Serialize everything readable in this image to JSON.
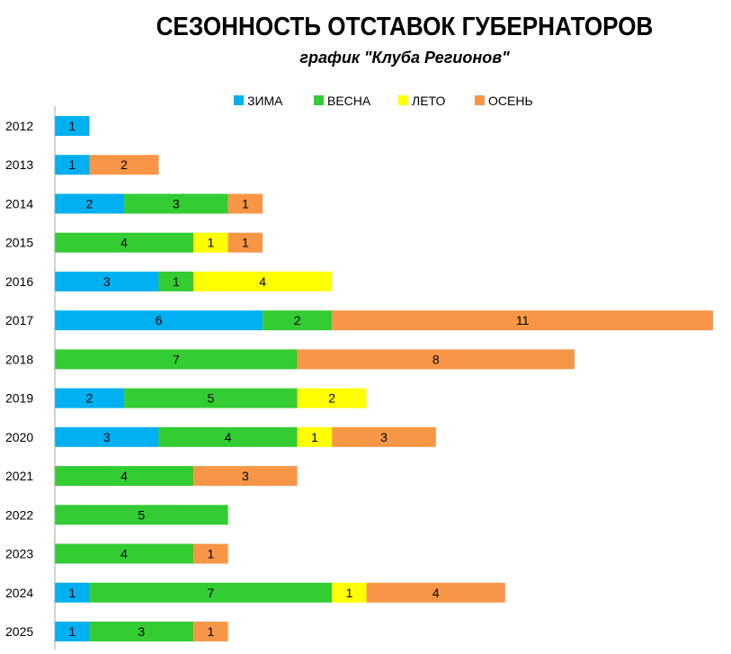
{
  "chart_data": {
    "type": "bar",
    "orientation": "horizontal",
    "stacked": true,
    "title": "СЕЗОННОСТЬ ОТСТАВОК ГУБЕРНАТОРОВ",
    "subtitle": "график \"Клуба Регионов\"",
    "xlabel": "",
    "ylabel": "",
    "legend_position": "top",
    "grid": false,
    "categories": [
      "2012",
      "2013",
      "2014",
      "2015",
      "2016",
      "2017",
      "2018",
      "2019",
      "2020",
      "2021",
      "2022",
      "2023",
      "2024",
      "2025"
    ],
    "series": [
      {
        "name": "ЗИМА",
        "color": "#00b0f0",
        "values": [
          1,
          1,
          2,
          0,
          3,
          6,
          0,
          2,
          3,
          0,
          0,
          0,
          1,
          1
        ]
      },
      {
        "name": "ВЕСНА",
        "color": "#33cc33",
        "values": [
          0,
          0,
          3,
          4,
          1,
          2,
          7,
          5,
          4,
          4,
          5,
          4,
          7,
          3
        ]
      },
      {
        "name": "ЛЕТО",
        "color": "#ffff00",
        "values": [
          0,
          0,
          0,
          1,
          4,
          0,
          0,
          2,
          1,
          0,
          0,
          0,
          1,
          0
        ]
      },
      {
        "name": "ОСЕНЬ",
        "color": "#f79646",
        "values": [
          0,
          2,
          1,
          1,
          0,
          11,
          8,
          0,
          3,
          3,
          0,
          1,
          4,
          1
        ]
      }
    ],
    "xlim": [
      0,
      19
    ]
  }
}
